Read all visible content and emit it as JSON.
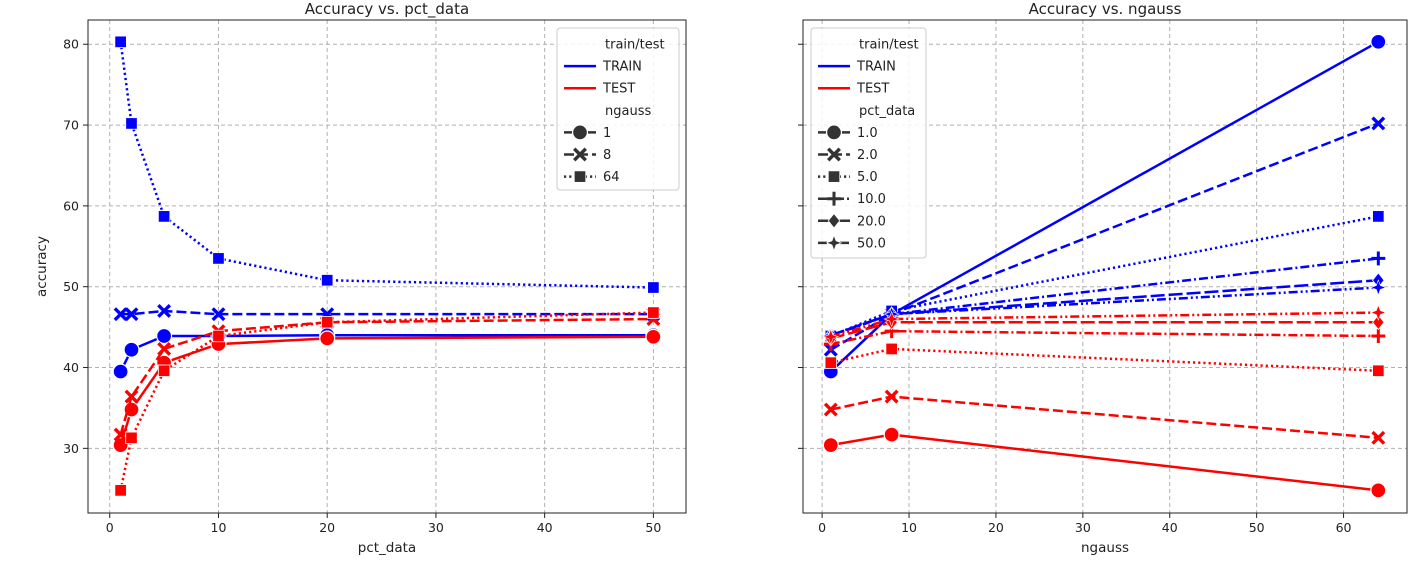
{
  "chart_data": [
    {
      "type": "line",
      "title": "Accuracy vs. pct_data",
      "xlabel": "pct_data",
      "ylabel": "accuracy",
      "xlim": [
        -2,
        53
      ],
      "ylim": [
        22,
        83
      ],
      "xticks": [
        0,
        10,
        20,
        30,
        40,
        50
      ],
      "yticks": [
        30,
        40,
        50,
        60,
        70,
        80
      ],
      "grid": true,
      "legend_position": "top-right",
      "legend": {
        "hue_title": "train/test",
        "hue": [
          {
            "label": "TRAIN",
            "color": "#0000ff"
          },
          {
            "label": "TEST",
            "color": "#ff0000"
          }
        ],
        "style_title": "ngauss",
        "styles": [
          {
            "label": "1",
            "dash": "solid",
            "marker": "circle"
          },
          {
            "label": "8",
            "dash": "dashed",
            "marker": "x"
          },
          {
            "label": "64",
            "dash": "dotted",
            "marker": "square"
          }
        ]
      },
      "x": [
        1,
        2,
        5,
        10,
        20,
        50
      ],
      "series": [
        {
          "name": "TRAIN",
          "group": "1",
          "color": "#0000ff",
          "dash": "solid",
          "marker": "circle",
          "values": [
            39.5,
            42.2,
            43.9,
            43.9,
            44.0,
            44.0
          ]
        },
        {
          "name": "TRAIN",
          "group": "8",
          "color": "#0000ff",
          "dash": "dashed",
          "marker": "x",
          "values": [
            46.6,
            46.6,
            47.0,
            46.6,
            46.6,
            46.6
          ]
        },
        {
          "name": "TRAIN",
          "group": "64",
          "color": "#0000ff",
          "dash": "dotted",
          "marker": "square",
          "values": [
            80.3,
            70.2,
            58.7,
            53.5,
            50.8,
            49.9
          ]
        },
        {
          "name": "TEST",
          "group": "1",
          "color": "#ff0000",
          "dash": "solid",
          "marker": "circle",
          "values": [
            30.4,
            34.8,
            40.6,
            42.9,
            43.6,
            43.8
          ]
        },
        {
          "name": "TEST",
          "group": "8",
          "color": "#ff0000",
          "dash": "dashed",
          "marker": "x",
          "values": [
            31.7,
            36.4,
            42.3,
            44.5,
            45.6,
            46.0
          ]
        },
        {
          "name": "TEST",
          "group": "64",
          "color": "#ff0000",
          "dash": "dotted",
          "marker": "square",
          "values": [
            24.8,
            31.3,
            39.6,
            43.9,
            45.6,
            46.8
          ]
        }
      ]
    },
    {
      "type": "line",
      "title": "Accuracy vs. ngauss",
      "xlabel": "ngauss",
      "ylabel": "",
      "xlim": [
        -2.2,
        67.3
      ],
      "ylim": [
        22,
        83
      ],
      "xticks": [
        0,
        10,
        20,
        30,
        40,
        50,
        60
      ],
      "yticks": [
        30,
        40,
        50,
        60,
        70,
        80
      ],
      "grid": true,
      "legend_position": "top-left",
      "legend": {
        "hue_title": "train/test",
        "hue": [
          {
            "label": "TRAIN",
            "color": "#0000ff"
          },
          {
            "label": "TEST",
            "color": "#ff0000"
          }
        ],
        "style_title": "pct_data",
        "styles": [
          {
            "label": "1.0",
            "dash": "solid",
            "marker": "circle"
          },
          {
            "label": "2.0",
            "dash": "dashed",
            "marker": "x"
          },
          {
            "label": "5.0",
            "dash": "dotted",
            "marker": "square"
          },
          {
            "label": "10.0",
            "dash": "dashdot",
            "marker": "plus"
          },
          {
            "label": "20.0",
            "dash": "longdash",
            "marker": "diamond"
          },
          {
            "label": "50.0",
            "dash": "dashdotdot",
            "marker": "star"
          }
        ]
      },
      "x": [
        1,
        8,
        64
      ],
      "series": [
        {
          "name": "TRAIN",
          "group": "1.0",
          "color": "#0000ff",
          "dash": "solid",
          "marker": "circle",
          "values": [
            39.5,
            46.6,
            80.3
          ]
        },
        {
          "name": "TRAIN",
          "group": "2.0",
          "color": "#0000ff",
          "dash": "dashed",
          "marker": "x",
          "values": [
            42.2,
            46.6,
            70.2
          ]
        },
        {
          "name": "TRAIN",
          "group": "5.0",
          "color": "#0000ff",
          "dash": "dotted",
          "marker": "square",
          "values": [
            43.9,
            47.0,
            58.7
          ]
        },
        {
          "name": "TRAIN",
          "group": "10.0",
          "color": "#0000ff",
          "dash": "dashdot",
          "marker": "plus",
          "values": [
            43.9,
            46.6,
            53.5
          ]
        },
        {
          "name": "TRAIN",
          "group": "20.0",
          "color": "#0000ff",
          "dash": "longdash",
          "marker": "diamond",
          "values": [
            44.0,
            46.6,
            50.8
          ]
        },
        {
          "name": "TRAIN",
          "group": "50.0",
          "color": "#0000ff",
          "dash": "dashdotdot",
          "marker": "star",
          "values": [
            44.0,
            46.6,
            49.9
          ]
        },
        {
          "name": "TEST",
          "group": "1.0",
          "color": "#ff0000",
          "dash": "solid",
          "marker": "circle",
          "values": [
            30.4,
            31.7,
            24.8
          ]
        },
        {
          "name": "TEST",
          "group": "2.0",
          "color": "#ff0000",
          "dash": "dashed",
          "marker": "x",
          "values": [
            34.8,
            36.4,
            31.3
          ]
        },
        {
          "name": "TEST",
          "group": "5.0",
          "color": "#ff0000",
          "dash": "dotted",
          "marker": "square",
          "values": [
            40.6,
            42.3,
            39.6
          ]
        },
        {
          "name": "TEST",
          "group": "10.0",
          "color": "#ff0000",
          "dash": "dashdot",
          "marker": "plus",
          "values": [
            42.9,
            44.5,
            43.9
          ]
        },
        {
          "name": "TEST",
          "group": "20.0",
          "color": "#ff0000",
          "dash": "longdash",
          "marker": "diamond",
          "values": [
            43.6,
            45.6,
            45.6
          ]
        },
        {
          "name": "TEST",
          "group": "50.0",
          "color": "#ff0000",
          "dash": "dashdotdot",
          "marker": "star",
          "values": [
            43.8,
            46.0,
            46.8
          ]
        }
      ]
    }
  ]
}
